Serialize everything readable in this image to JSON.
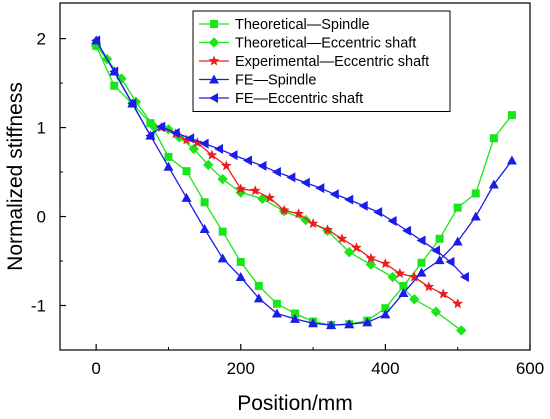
{
  "chart_data": {
    "type": "line",
    "title": "",
    "xlabel": "Position/mm",
    "ylabel": "Normalized stiffness",
    "xlim": [
      -50,
      600
    ],
    "ylim": [
      -1.5,
      2.4
    ],
    "xticks": [
      0,
      200,
      400,
      600
    ],
    "yticks": [
      -1,
      0,
      1,
      2
    ],
    "grid": false,
    "legend_position": "top-right",
    "series": [
      {
        "name": "Theoretical—Spindle",
        "color": "#19e619",
        "marker": "square",
        "x": [
          0,
          25,
          50,
          75,
          100,
          125,
          150,
          175,
          200,
          225,
          250,
          275,
          300,
          325,
          350,
          375,
          400,
          425,
          450,
          475,
          500,
          525,
          550,
          575
        ],
        "y": [
          1.92,
          1.47,
          1.27,
          1.05,
          0.67,
          0.51,
          0.16,
          -0.17,
          -0.51,
          -0.78,
          -0.98,
          -1.09,
          -1.18,
          -1.22,
          -1.21,
          -1.17,
          -1.03,
          -0.78,
          -0.52,
          -0.25,
          0.1,
          0.26,
          0.88,
          1.14
        ]
      },
      {
        "name": "Theoretical—Eccentric shaft",
        "color": "#19e619",
        "marker": "diamond",
        "x": [
          0,
          15,
          35,
          55,
          80,
          100,
          115,
          135,
          155,
          175,
          200,
          230,
          260,
          290,
          320,
          350,
          380,
          410,
          440,
          470,
          505
        ],
        "y": [
          1.92,
          1.77,
          1.55,
          1.29,
          1.01,
          0.98,
          0.89,
          0.76,
          0.58,
          0.42,
          0.27,
          0.2,
          0.06,
          -0.04,
          -0.16,
          -0.4,
          -0.54,
          -0.68,
          -0.93,
          -1.07,
          -1.28
        ]
      },
      {
        "name": "Experimental—Eccentric shaft",
        "color": "#ee1c1c",
        "marker": "star",
        "x": [
          90,
          110,
          125,
          140,
          160,
          180,
          200,
          220,
          240,
          260,
          280,
          300,
          320,
          340,
          360,
          380,
          400,
          420,
          440,
          460,
          480,
          500
        ],
        "y": [
          1.0,
          0.93,
          0.86,
          0.83,
          0.69,
          0.57,
          0.31,
          0.29,
          0.21,
          0.07,
          0.03,
          -0.08,
          -0.15,
          -0.25,
          -0.35,
          -0.47,
          -0.53,
          -0.64,
          -0.68,
          -0.79,
          -0.87,
          -0.98
        ]
      },
      {
        "name": "FE—Spindle",
        "color": "#1c1ce8",
        "marker": "triangle-up",
        "x": [
          0,
          25,
          50,
          75,
          100,
          125,
          150,
          175,
          200,
          225,
          250,
          275,
          300,
          325,
          350,
          375,
          400,
          425,
          450,
          475,
          500,
          525,
          550,
          575
        ],
        "y": [
          1.98,
          1.63,
          1.27,
          0.91,
          0.56,
          0.21,
          -0.14,
          -0.47,
          -0.68,
          -0.92,
          -1.09,
          -1.15,
          -1.2,
          -1.22,
          -1.21,
          -1.19,
          -1.1,
          -0.86,
          -0.63,
          -0.49,
          -0.28,
          0.0,
          0.36,
          0.63
        ]
      },
      {
        "name": "FE—Eccentric shaft",
        "color": "#1c1ce8",
        "marker": "triangle-left",
        "x": [
          0,
          25,
          50,
          75,
          90,
          110,
          130,
          150,
          170,
          190,
          210,
          230,
          250,
          270,
          290,
          310,
          330,
          350,
          370,
          390,
          410,
          430,
          450,
          470,
          490,
          510
        ],
        "y": [
          1.98,
          1.63,
          1.27,
          0.91,
          1.01,
          0.94,
          0.88,
          0.82,
          0.76,
          0.69,
          0.63,
          0.57,
          0.5,
          0.44,
          0.38,
          0.32,
          0.25,
          0.19,
          0.12,
          0.05,
          -0.05,
          -0.16,
          -0.27,
          -0.38,
          -0.51,
          -0.68
        ]
      }
    ]
  }
}
